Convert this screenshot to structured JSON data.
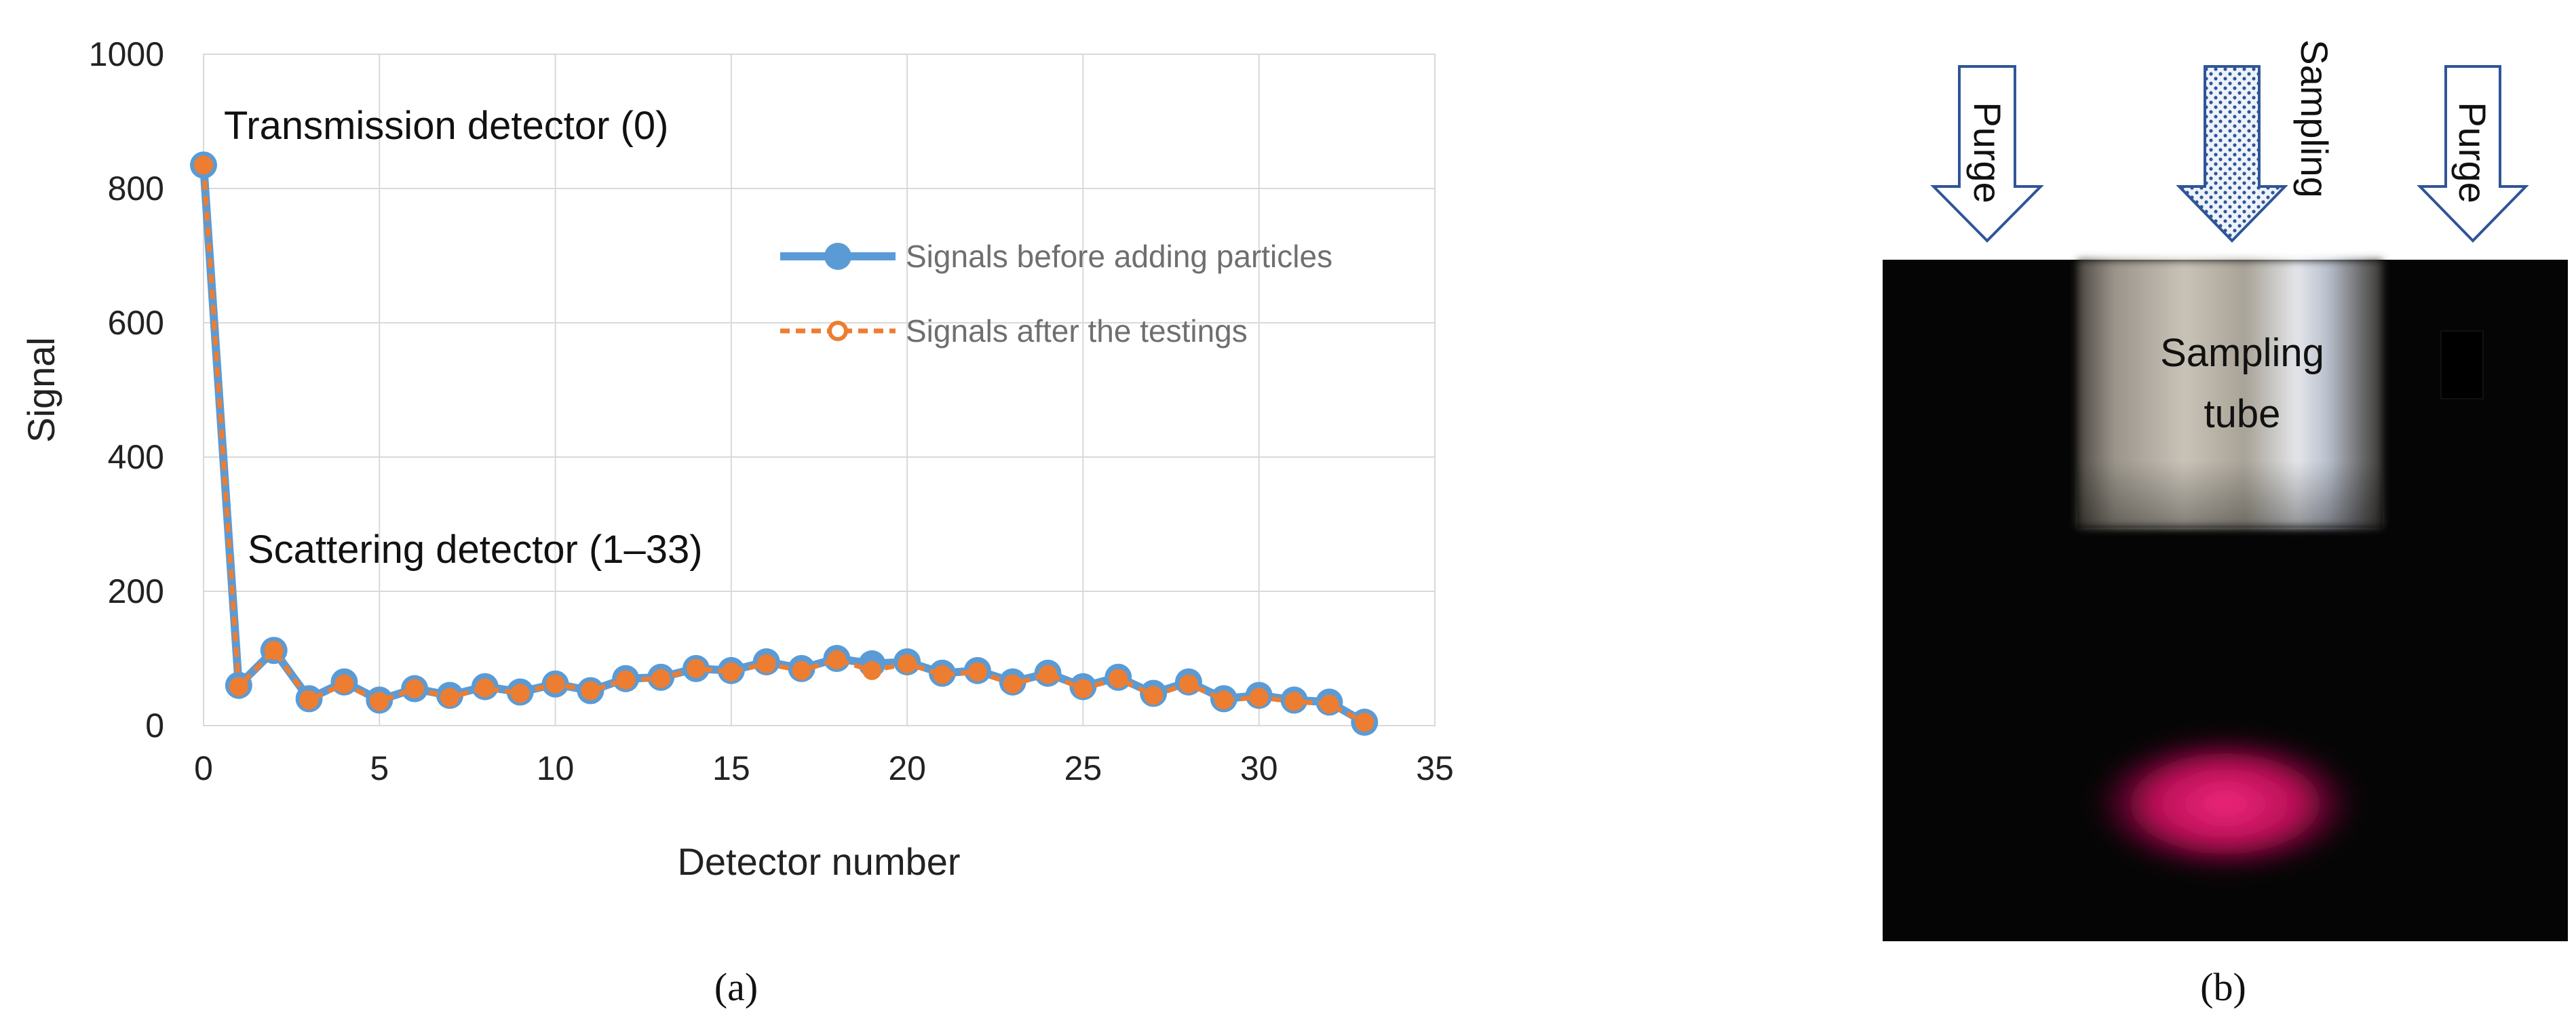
{
  "chart_data": {
    "type": "line",
    "title": "",
    "xlabel": "Detector number",
    "ylabel": "Signal",
    "xlim": [
      0,
      35
    ],
    "ylim": [
      0,
      1000
    ],
    "x_ticks": [
      "0",
      "5",
      "10",
      "15",
      "20",
      "25",
      "30",
      "35"
    ],
    "y_ticks": [
      "0",
      "200",
      "400",
      "600",
      "800",
      "1000"
    ],
    "grid": true,
    "legend_position": "right",
    "x": [
      0,
      1,
      2,
      3,
      4,
      5,
      6,
      7,
      8,
      9,
      10,
      11,
      12,
      13,
      14,
      15,
      16,
      17,
      18,
      19,
      20,
      21,
      22,
      23,
      24,
      25,
      26,
      27,
      28,
      29,
      30,
      31,
      32,
      33
    ],
    "series": [
      {
        "name": "Signals before adding particles",
        "color": "#5b9bd5",
        "style": "solid",
        "values": [
          835,
          60,
          112,
          40,
          65,
          38,
          55,
          45,
          58,
          50,
          62,
          52,
          70,
          72,
          85,
          82,
          95,
          85,
          100,
          92,
          95,
          78,
          82,
          65,
          78,
          58,
          72,
          48,
          65,
          40,
          45,
          38,
          35,
          5
        ]
      },
      {
        "name": "Signals after the testings",
        "color": "#ed7d31",
        "style": "dashed",
        "values": [
          835,
          58,
          112,
          38,
          62,
          36,
          55,
          42,
          56,
          48,
          62,
          52,
          68,
          70,
          85,
          80,
          92,
          82,
          98,
          82,
          92,
          76,
          80,
          62,
          76,
          55,
          70,
          45,
          62,
          38,
          42,
          36,
          32,
          5
        ]
      }
    ],
    "annotations": [
      {
        "text": "Transmission detector (0)"
      },
      {
        "text": "Scattering detector (1–33)"
      }
    ]
  },
  "photo": {
    "labels": {
      "purge_left": "Purge",
      "sampling": "Sampling",
      "purge_right": "Purge",
      "tube_line1": "Sampling",
      "tube_line2": "tube"
    },
    "colors": {
      "background": "#050505",
      "tube": "#b8b2a8",
      "glow": "#e8106a",
      "arrow_fill": "#ffffff",
      "arrow_stroke": "#2f5597"
    }
  },
  "captions": {
    "a": "(a)",
    "b": "(b)"
  }
}
